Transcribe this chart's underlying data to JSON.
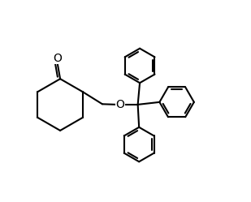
{
  "background": "#ffffff",
  "line_color": "#000000",
  "line_width": 1.5,
  "O_label_fontsize": 10,
  "ketone_O_fontsize": 10
}
